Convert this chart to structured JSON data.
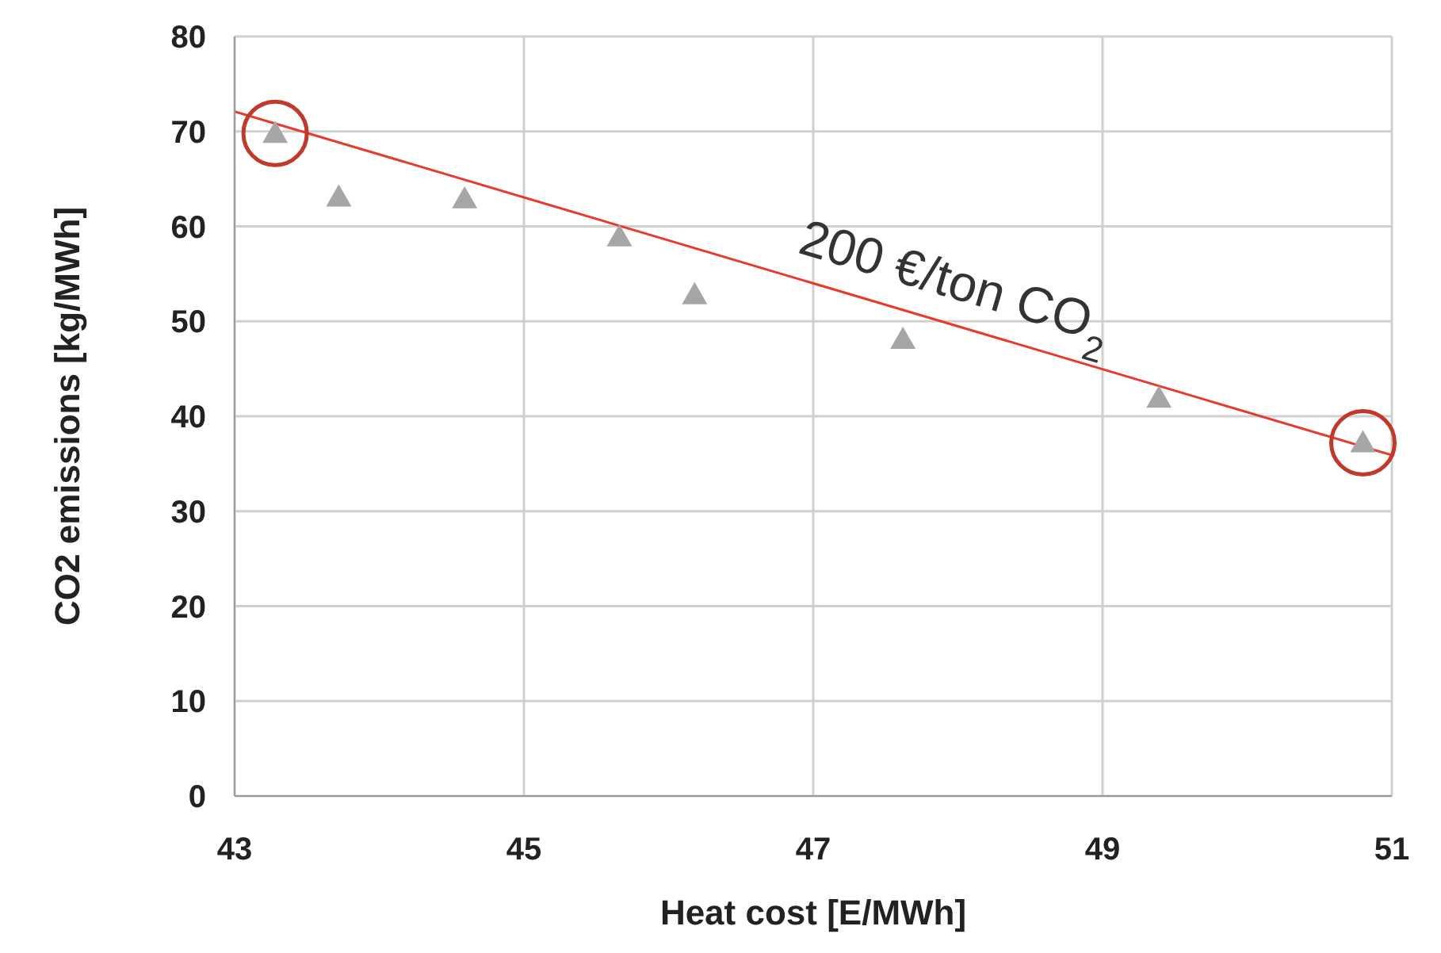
{
  "chart_data": {
    "type": "scatter",
    "xlabel": "Heat cost [E/MWh]",
    "ylabel": "CO2 emissions [kg/MWh]",
    "x": [
      43.28,
      43.72,
      44.59,
      45.66,
      46.18,
      47.62,
      49.39,
      50.8
    ],
    "series": [
      {
        "color": "#a6a6a6",
        "marker": "triangle",
        "values": [
          69.8,
          63.1,
          62.9,
          58.9,
          52.8,
          48.1,
          41.9,
          37.2
        ]
      },
      {
        "type": "line",
        "color": "#e8392a",
        "marker": "none",
        "x": [
          43,
          51
        ],
        "values": [
          72.1,
          35.9
        ]
      }
    ],
    "annotations": [
      {
        "text": "200 €/ton CO$_{2}$",
        "x": 47.9,
        "y": 49.9
      }
    ],
    "xlim": [
      43,
      51
    ],
    "xticks": [
      43,
      45,
      47,
      49,
      51
    ],
    "ylim": [
      0,
      80
    ],
    "yticks": [
      0,
      10,
      20,
      30,
      40,
      50,
      60,
      70,
      80
    ],
    "grid": true,
    "legend": false
  }
}
